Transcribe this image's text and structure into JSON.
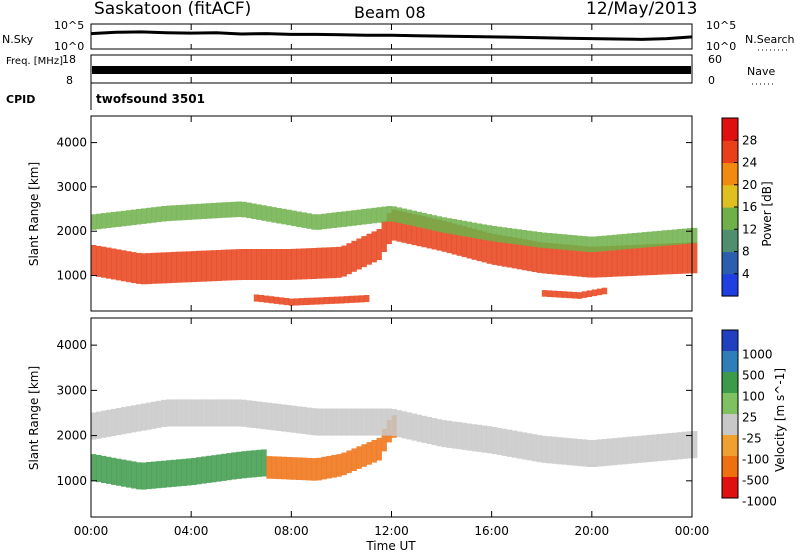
{
  "header": {
    "station": "Saskatoon (fitACF)",
    "beam": "Beam 08",
    "date": "12/May/2013"
  },
  "chart_data": [
    {
      "type": "line",
      "name": "noise-panel",
      "left_label": "N.Sky",
      "right_label": "N.Search",
      "left_ticks": [
        "10^5",
        "10^0"
      ],
      "right_ticks": [
        "10^5",
        "10^0"
      ],
      "ylim": [
        0,
        5
      ],
      "x": [
        0,
        1,
        2,
        3,
        4,
        5,
        6,
        7,
        8,
        9,
        10,
        11,
        12,
        13,
        14,
        15,
        16,
        17,
        18,
        19,
        20,
        21,
        22,
        23,
        24
      ],
      "values": [
        3.2,
        3.5,
        3.6,
        3.4,
        3.3,
        3.4,
        3.1,
        3.2,
        3.0,
        3.0,
        2.9,
        2.8,
        2.8,
        2.7,
        2.6,
        2.5,
        2.4,
        2.3,
        2.2,
        2.1,
        2.0,
        1.9,
        1.8,
        2.0,
        2.4
      ]
    },
    {
      "type": "line",
      "name": "freq-nave-panel",
      "left_label": "Freq. [MHz]",
      "right_label": "Nave",
      "left_ticks": [
        "18",
        "8"
      ],
      "right_ticks": [
        "60",
        "0"
      ],
      "freq_mhz": 11,
      "nave": 28
    },
    {
      "type": "text",
      "left_label": "CPID",
      "cpid": "twofsound 3501"
    },
    {
      "type": "heatmap",
      "name": "power",
      "ylabel": "Slant Range [km]",
      "y_ticks": [
        1000,
        2000,
        3000,
        4000
      ],
      "ylim": [
        200,
        4600
      ],
      "xlim": [
        0,
        24
      ],
      "colorbar_label": "Power [dB]",
      "colorbar_ticks": [
        4,
        8,
        12,
        16,
        20,
        24,
        28
      ],
      "colorbar_range": [
        0,
        32
      ],
      "colors": [
        "#1f3fe0",
        "#2b5fae",
        "#4f8f6f",
        "#6fb04a",
        "#e0c020",
        "#f08a10",
        "#e84018",
        "#e01010"
      ],
      "bands": [
        {
          "range_km": [
            [
              0,
              1350
            ],
            [
              2,
              1150
            ],
            [
              4,
              1200
            ],
            [
              6,
              1250
            ],
            [
              8,
              1250
            ],
            [
              10,
              1300
            ],
            [
              11.5,
              1700
            ],
            [
              12,
              2150
            ],
            [
              14,
              1900
            ],
            [
              16,
              1600
            ],
            [
              18,
              1400
            ],
            [
              20,
              1300
            ],
            [
              22,
              1350
            ],
            [
              24,
              1400
            ]
          ],
          "width_km": 700,
          "power_db": 24
        },
        {
          "range_km": [
            [
              0,
              2200
            ],
            [
              3,
              2400
            ],
            [
              6,
              2500
            ],
            [
              9,
              2200
            ],
            [
              12,
              2400
            ],
            [
              14,
              2150
            ],
            [
              16,
              1950
            ],
            [
              18,
              1800
            ],
            [
              20,
              1700
            ],
            [
              22,
              1800
            ],
            [
              24,
              1900
            ]
          ],
          "width_km": 350,
          "power_db": 12
        },
        {
          "range_km": [
            [
              6.5,
              500
            ],
            [
              8,
              400
            ],
            [
              10,
              450
            ],
            [
              11,
              480
            ]
          ],
          "width_km": 160,
          "power_db": 26
        },
        {
          "range_km": [
            [
              18,
              600
            ],
            [
              19.5,
              550
            ],
            [
              20.5,
              650
            ]
          ],
          "width_km": 150,
          "power_db": 24
        }
      ]
    },
    {
      "type": "heatmap",
      "name": "velocity",
      "xlabel": "Time UT",
      "x_ticks": [
        "00:00",
        "04:00",
        "08:00",
        "12:00",
        "16:00",
        "20:00",
        "00:00"
      ],
      "ylabel": "Slant Range [km]",
      "y_ticks": [
        1000,
        2000,
        3000,
        4000
      ],
      "ylim": [
        200,
        4600
      ],
      "xlim": [
        0,
        24
      ],
      "colorbar_label": "Velocity [m s^-1]",
      "colorbar_ticks": [
        "1000",
        "500",
        "100",
        "25",
        "-25",
        "-100",
        "-500",
        "-1000"
      ],
      "colors": [
        "#2040c0",
        "#2e7fb8",
        "#3c9a4a",
        "#7fc060",
        "#c8c8c8",
        "#f0a030",
        "#f07010",
        "#e01010"
      ],
      "bands": [
        {
          "range_km": [
            [
              0,
              1300
            ],
            [
              2,
              1100
            ],
            [
              4,
              1200
            ],
            [
              6,
              1350
            ],
            [
              7,
              1400
            ]
          ],
          "width_km": 600,
          "velocity": 150
        },
        {
          "range_km": [
            [
              7,
              1300
            ],
            [
              9,
              1250
            ],
            [
              10,
              1350
            ],
            [
              11.5,
              1700
            ],
            [
              12,
              2200
            ]
          ],
          "width_km": 500,
          "velocity": -200
        },
        {
          "range_km": [
            [
              0,
              2200
            ],
            [
              3,
              2500
            ],
            [
              6,
              2500
            ],
            [
              9,
              2300
            ],
            [
              12,
              2300
            ],
            [
              14,
              2050
            ],
            [
              16,
              1900
            ],
            [
              18,
              1700
            ],
            [
              20,
              1600
            ],
            [
              22,
              1700
            ],
            [
              24,
              1800
            ]
          ],
          "width_km": 600,
          "velocity": 0
        }
      ]
    }
  ]
}
